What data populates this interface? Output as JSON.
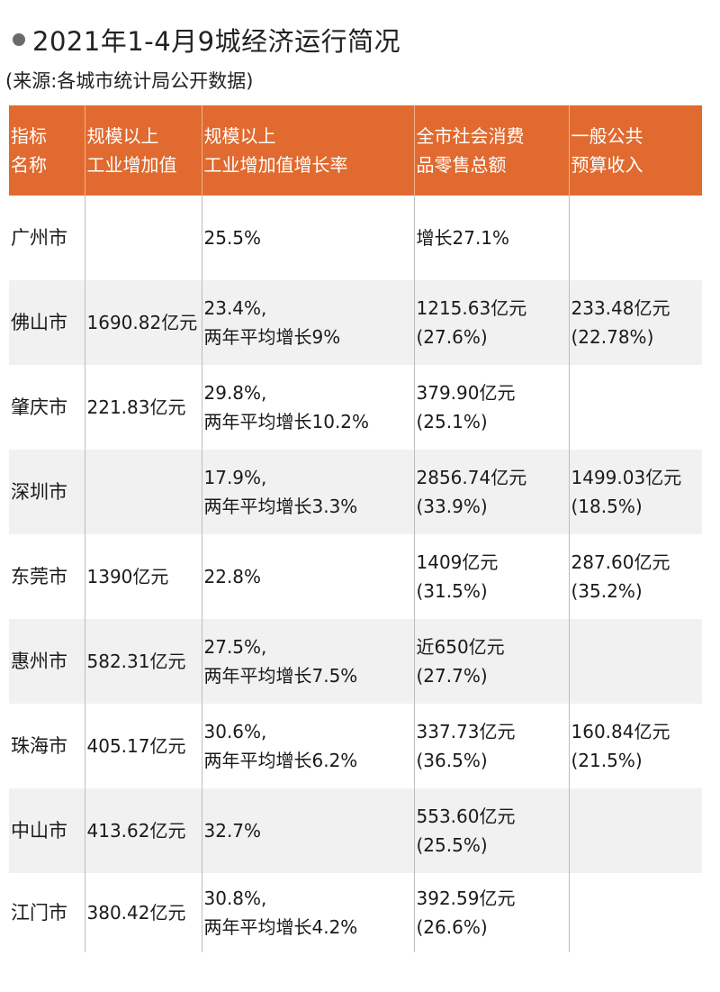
{
  "title": "2021年1-4月9城经济运行简况",
  "source": "(来源:各城市统计局公开数据)",
  "headers": [
    [
      "指标",
      "名称"
    ],
    [
      "规模以上",
      "工业增加值"
    ],
    [
      "规模以上",
      "工业增加值增长率"
    ],
    [
      "全市社会消费",
      "品零售总额"
    ],
    [
      "一般公共",
      "预算收入"
    ]
  ],
  "rows": [
    {
      "city": "广州市",
      "output": "",
      "growth": [
        "25.5%",
        ""
      ],
      "retail": [
        "增长27.1%",
        ""
      ],
      "budget": [
        "",
        ""
      ]
    },
    {
      "city": "佛山市",
      "output": "1690.82亿元",
      "growth": [
        "23.4%,",
        "两年平均增长9%"
      ],
      "retail": [
        "1215.63亿元",
        "(27.6%)"
      ],
      "budget": [
        "233.48亿元",
        "(22.78%)"
      ]
    },
    {
      "city": "肇庆市",
      "output": "221.83亿元",
      "growth": [
        "29.8%,",
        "两年平均增长10.2%"
      ],
      "retail": [
        "379.90亿元",
        "(25.1%)"
      ],
      "budget": [
        "",
        ""
      ]
    },
    {
      "city": "深圳市",
      "output": "",
      "growth": [
        "17.9%,",
        "两年平均增长3.3%"
      ],
      "retail": [
        "2856.74亿元",
        "(33.9%)"
      ],
      "budget": [
        "1499.03亿元",
        "(18.5%)"
      ]
    },
    {
      "city": "东莞市",
      "output": "1390亿元",
      "growth": [
        "22.8%",
        ""
      ],
      "retail": [
        "1409亿元",
        "(31.5%)"
      ],
      "budget": [
        "287.60亿元",
        "(35.2%)"
      ]
    },
    {
      "city": "惠州市",
      "output": "582.31亿元",
      "growth": [
        "27.5%,",
        "两年平均增长7.5%"
      ],
      "retail": [
        "近650亿元",
        "(27.7%)"
      ],
      "budget": [
        "",
        ""
      ]
    },
    {
      "city": "珠海市",
      "output": "405.17亿元",
      "growth": [
        "30.6%,",
        "两年平均增长6.2%"
      ],
      "retail": [
        "337.73亿元",
        "(36.5%)"
      ],
      "budget": [
        "160.84亿元",
        "(21.5%)"
      ]
    },
    {
      "city": "中山市",
      "output": "413.62亿元",
      "growth": [
        "32.7%",
        ""
      ],
      "retail": [
        "553.60亿元",
        "(25.5%)"
      ],
      "budget": [
        "",
        ""
      ]
    },
    {
      "city": "江门市",
      "output": "380.42亿元",
      "growth": [
        "30.8%,",
        "两年平均增长4.2%"
      ],
      "retail": [
        "392.59亿元",
        "(26.6%)"
      ],
      "budget": [
        "",
        ""
      ]
    }
  ]
}
